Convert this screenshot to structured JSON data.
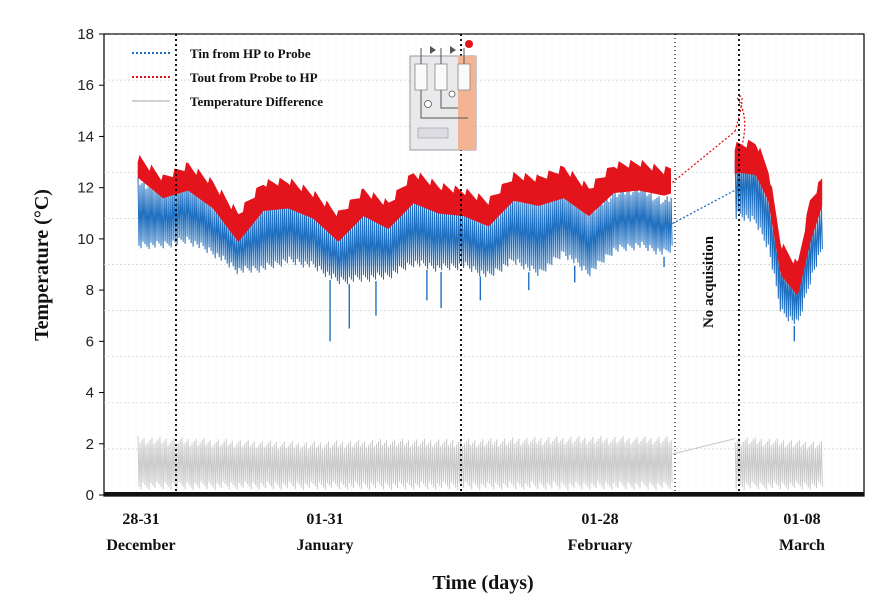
{
  "chart_data": {
    "type": "line",
    "title": "",
    "xlabel": "Time (days)",
    "ylabel": "Temperature (°C)",
    "ylim": [
      0,
      18
    ],
    "yticks": [
      0,
      2,
      4,
      6,
      8,
      10,
      12,
      14,
      16,
      18
    ],
    "grid": true,
    "legend_position": "top-left",
    "x_groups": [
      {
        "range": "28-31",
        "month": "December"
      },
      {
        "range": "01-31",
        "month": "January"
      },
      {
        "range": "01-28",
        "month": "February"
      },
      {
        "range": "01-08",
        "month": "March"
      }
    ],
    "x_unit": "day index from 28 December",
    "annotations": [
      {
        "text": "No acquisition",
        "day_start": 64,
        "day_end": 71.5
      }
    ],
    "series": [
      {
        "name": "Tin from HP to Probe",
        "color": "#1f6fc0",
        "style": "dotted",
        "envelope": [
          {
            "day": 0,
            "low": 9.6,
            "high": 12.4
          },
          {
            "day": 3,
            "low": 9.6,
            "high": 12.0
          },
          {
            "day": 6,
            "low": 9.8,
            "high": 12.3
          },
          {
            "day": 9,
            "low": 9.3,
            "high": 11.5
          },
          {
            "day": 12,
            "low": 8.6,
            "high": 10.5
          },
          {
            "day": 15,
            "low": 8.7,
            "high": 11.5
          },
          {
            "day": 18,
            "low": 9.0,
            "high": 11.7
          },
          {
            "day": 21,
            "low": 8.8,
            "high": 11.2
          },
          {
            "day": 24,
            "low": 8.2,
            "high": 10.3
          },
          {
            "day": 27,
            "low": 8.3,
            "high": 11.3
          },
          {
            "day": 30,
            "low": 8.4,
            "high": 10.8
          },
          {
            "day": 33,
            "low": 8.9,
            "high": 11.8
          },
          {
            "day": 36,
            "low": 8.7,
            "high": 11.4
          },
          {
            "day": 39,
            "low": 8.8,
            "high": 11.3
          },
          {
            "day": 42,
            "low": 8.4,
            "high": 10.8
          },
          {
            "day": 45,
            "low": 9.0,
            "high": 11.8
          },
          {
            "day": 48,
            "low": 8.5,
            "high": 11.6
          },
          {
            "day": 51,
            "low": 9.3,
            "high": 12.0
          },
          {
            "day": 54,
            "low": 8.5,
            "high": 11.2
          },
          {
            "day": 57,
            "low": 9.4,
            "high": 11.9
          },
          {
            "day": 60,
            "low": 9.6,
            "high": 12.1
          },
          {
            "day": 63,
            "low": 9.3,
            "high": 11.6
          },
          {
            "day": 72,
            "low": 10.8,
            "high": 13.4
          },
          {
            "day": 74,
            "low": 10.5,
            "high": 13.5
          },
          {
            "day": 75.5,
            "low": 9.5,
            "high": 12.2
          },
          {
            "day": 77,
            "low": 7.0,
            "high": 9.5
          },
          {
            "day": 79,
            "low": 6.5,
            "high": 8.6
          },
          {
            "day": 80.5,
            "low": 8.2,
            "high": 10.8
          },
          {
            "day": 82,
            "low": 9.5,
            "high": 11.4
          }
        ],
        "dips": [
          {
            "day": 23.0,
            "value": 6.0
          },
          {
            "day": 25.3,
            "value": 6.5
          },
          {
            "day": 28.5,
            "value": 7.0
          },
          {
            "day": 34.6,
            "value": 7.6
          },
          {
            "day": 36.3,
            "value": 7.3
          },
          {
            "day": 41.0,
            "value": 7.6
          },
          {
            "day": 46.8,
            "value": 8.0
          },
          {
            "day": 52.3,
            "value": 8.3
          },
          {
            "day": 63.0,
            "value": 8.9
          },
          {
            "day": 78.6,
            "value": 6.0
          }
        ],
        "gap_line": [
          {
            "day": 64,
            "value": 10.6
          },
          {
            "day": 71.5,
            "value": 11.9
          }
        ]
      },
      {
        "name": "Tout from Probe to HP",
        "color": "#e3141b",
        "style": "dotted",
        "envelope": [
          {
            "day": 0,
            "low": 12.4,
            "high": 13.0
          },
          {
            "day": 3,
            "low": 11.6,
            "high": 12.2
          },
          {
            "day": 6,
            "low": 11.9,
            "high": 12.7
          },
          {
            "day": 9,
            "low": 11.2,
            "high": 12.0
          },
          {
            "day": 12,
            "low": 9.9,
            "high": 10.8
          },
          {
            "day": 15,
            "low": 11.1,
            "high": 12.0
          },
          {
            "day": 18,
            "low": 11.2,
            "high": 12.1
          },
          {
            "day": 21,
            "low": 10.8,
            "high": 11.6
          },
          {
            "day": 24,
            "low": 9.9,
            "high": 10.8
          },
          {
            "day": 27,
            "low": 10.9,
            "high": 11.7
          },
          {
            "day": 30,
            "low": 10.4,
            "high": 11.2
          },
          {
            "day": 33,
            "low": 11.4,
            "high": 12.4
          },
          {
            "day": 36,
            "low": 11.0,
            "high": 11.9
          },
          {
            "day": 39,
            "low": 10.9,
            "high": 11.7
          },
          {
            "day": 42,
            "low": 10.5,
            "high": 11.3
          },
          {
            "day": 45,
            "low": 11.5,
            "high": 12.3
          },
          {
            "day": 48,
            "low": 11.3,
            "high": 12.2
          },
          {
            "day": 51,
            "low": 11.6,
            "high": 12.6
          },
          {
            "day": 54,
            "low": 10.9,
            "high": 11.8
          },
          {
            "day": 57,
            "low": 11.8,
            "high": 12.7
          },
          {
            "day": 60,
            "low": 11.9,
            "high": 12.8
          },
          {
            "day": 63,
            "low": 11.7,
            "high": 12.5
          },
          {
            "day": 72,
            "low": 12.6,
            "high": 13.5
          },
          {
            "day": 74,
            "low": 12.5,
            "high": 13.6
          },
          {
            "day": 75.5,
            "low": 11.5,
            "high": 12.5
          },
          {
            "day": 77,
            "low": 8.6,
            "high": 9.6
          },
          {
            "day": 79,
            "low": 7.8,
            "high": 8.8
          },
          {
            "day": 80.5,
            "low": 9.9,
            "high": 11.3
          },
          {
            "day": 82,
            "low": 11.4,
            "high": 12.2
          }
        ],
        "gap_line": [
          {
            "day": 64,
            "value": 12.2
          },
          {
            "day": 71.5,
            "value": 14.2
          }
        ],
        "spike": {
          "day": 71.8,
          "value": 15.5
        }
      },
      {
        "name": "Temperature Difference",
        "color": "#c8c8c8",
        "style": "solid",
        "envelope": [
          {
            "day": 0,
            "low": 0.2,
            "high": 2.3
          },
          {
            "day": 10,
            "low": 0.2,
            "high": 2.2
          },
          {
            "day": 20,
            "low": 0.2,
            "high": 2.1
          },
          {
            "day": 30,
            "low": 0.2,
            "high": 2.2
          },
          {
            "day": 40,
            "low": 0.2,
            "high": 2.2
          },
          {
            "day": 50,
            "low": 0.2,
            "high": 2.3
          },
          {
            "day": 63,
            "low": 0.2,
            "high": 2.3
          },
          {
            "day": 72,
            "low": 0.2,
            "high": 2.3
          },
          {
            "day": 82,
            "low": 0.2,
            "high": 2.1
          }
        ],
        "gap_line": [
          {
            "day": 64,
            "value": 1.6
          },
          {
            "day": 71.5,
            "value": 2.2
          }
        ]
      }
    ]
  }
}
